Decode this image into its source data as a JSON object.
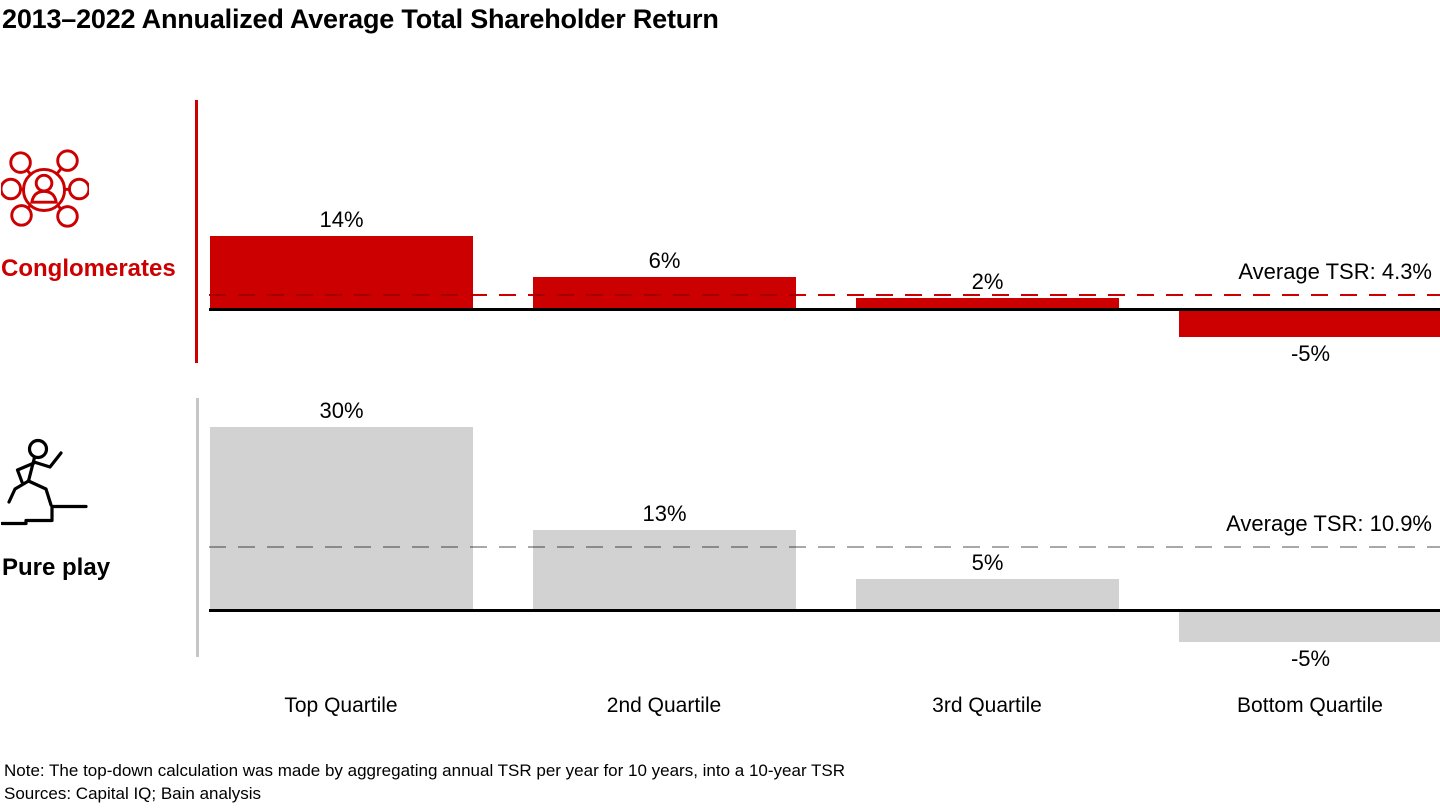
{
  "title": "2013–2022 Annualized Average Total Shareholder Return",
  "chart_data": {
    "type": "bar",
    "categories": [
      "Top Quartile",
      "2nd Quartile",
      "3rd Quartile",
      "Bottom Quartile"
    ],
    "series": [
      {
        "name": "Conglomerates",
        "values": [
          14,
          6,
          2,
          -5
        ],
        "value_labels": [
          "14%",
          "6%",
          "2%",
          "-5%"
        ],
        "average": 4.3,
        "average_label": "Average TSR: 4.3%",
        "bar_color": "#cc0000",
        "icon": "network-people-icon"
      },
      {
        "name": "Pure play",
        "values": [
          30,
          13,
          5,
          -5
        ],
        "value_labels": [
          "30%",
          "13%",
          "5%",
          "-5%"
        ],
        "average": 10.9,
        "average_label": "Average TSR: 10.9%",
        "bar_color": "#d2d2d2",
        "icon": "person-climbing-stairs-icon"
      }
    ],
    "title": "2013–2022 Annualized Average Total Shareholder Return",
    "xlabel": "",
    "ylabel": "",
    "grid": false,
    "value_label_position": "outside-end",
    "average_line_style": "dashed"
  },
  "footer": {
    "note": "Note: The top-down calculation was made by aggregating annual TSR per year for 10 years, into a 10-year TSR",
    "sources": "Sources: Capital IQ; Bain analysis"
  },
  "colors": {
    "accent_red": "#cc0000",
    "bar_gray": "#d2d2d2",
    "dash_gray": "#a8a8a8",
    "axis_gray": "#c6c6c6",
    "baseline_black": "#000000"
  }
}
